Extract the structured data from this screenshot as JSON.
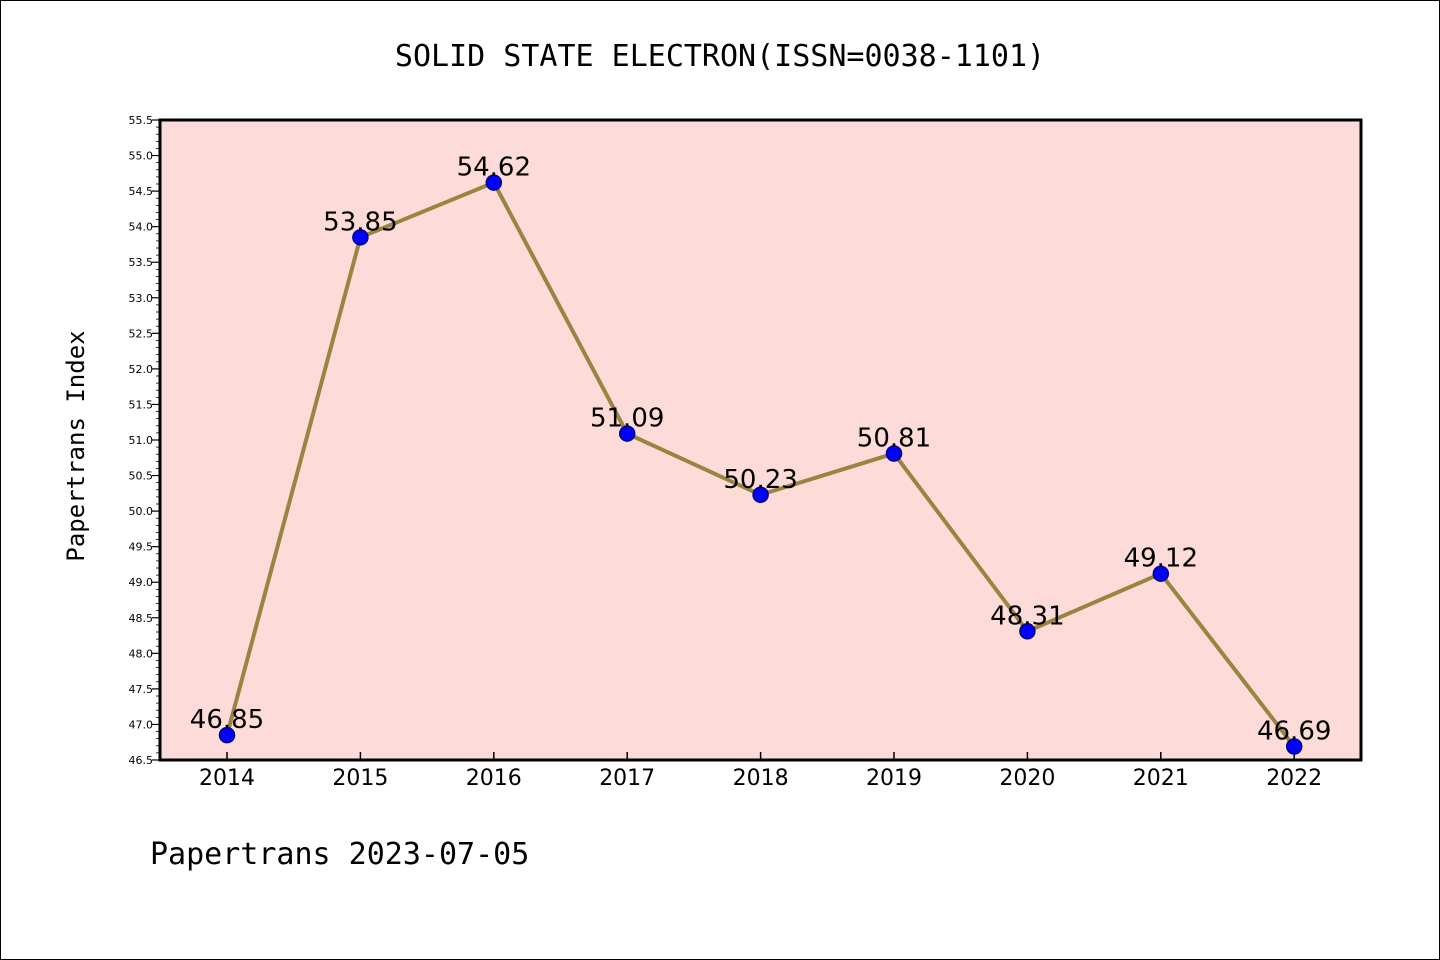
{
  "chart_data": {
    "type": "line",
    "title": "SOLID STATE ELECTRON(ISSN=0038-1101)",
    "xlabel": "",
    "ylabel": "Papertrans Index",
    "footer": "Papertrans 2023-07-05",
    "categories": [
      "2014",
      "2015",
      "2016",
      "2017",
      "2018",
      "2019",
      "2020",
      "2021",
      "2022"
    ],
    "series": [
      {
        "values": [
          46.85,
          53.85,
          54.62,
          51.09,
          50.23,
          50.81,
          48.31,
          49.12,
          46.69
        ],
        "labels": [
          "46.85",
          "53.85",
          "54.62",
          "51.09",
          "50.23",
          "50.81",
          "48.31",
          "49.12",
          "46.69"
        ]
      }
    ],
    "ylim": [
      46.5,
      55.5
    ],
    "yticks": [
      "46.5",
      "47.0",
      "47.5",
      "48.0",
      "48.5",
      "49.0",
      "49.5",
      "50.0",
      "50.5",
      "51.0",
      "51.5",
      "52.0",
      "52.5",
      "53.0",
      "53.5",
      "54.0",
      "54.5",
      "55.0",
      "55.5"
    ],
    "grid": false,
    "legend": "none",
    "colors": {
      "plot_background": "#fddbd8",
      "line": "#9a8540",
      "marker": "#0000ff",
      "marker_edge": "#00008b",
      "axis": "#000000"
    }
  }
}
